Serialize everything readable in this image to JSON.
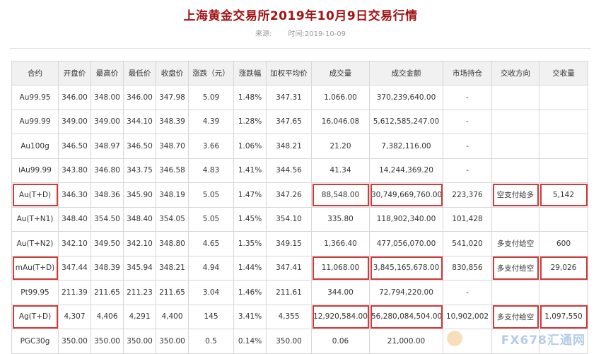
{
  "header": {
    "title": "上海黄金交易所2019年10月9日交易行情",
    "source_label": "来源:",
    "time_label": "时间:2019-10-09"
  },
  "table": {
    "columns": [
      "合约",
      "开盘价",
      "最高价",
      "最低价",
      "收盘价",
      "涨跌（元）",
      "涨跌幅",
      "加权平均价",
      "成交量",
      "成交金额",
      "市场持仓",
      "交收方向",
      "交收量"
    ],
    "rows": [
      [
        "Au99.95",
        "346.00",
        "348.00",
        "346.00",
        "347.98",
        "5.09",
        "1.48%",
        "347.31",
        "1,066.00",
        "370,239,640.00",
        "-",
        "",
        ""
      ],
      [
        "Au99.99",
        "349.00",
        "349.00",
        "344.10",
        "348.39",
        "4.39",
        "1.28%",
        "347.65",
        "16,046.08",
        "5,612,585,247.00",
        "-",
        "",
        ""
      ],
      [
        "Au100g",
        "346.50",
        "348.97",
        "346.50",
        "348.70",
        "3.66",
        "1.06%",
        "348.21",
        "21.20",
        "7,382,116.00",
        "-",
        "",
        ""
      ],
      [
        "iAu99.99",
        "343.80",
        "346.80",
        "343.75",
        "346.58",
        "4.83",
        "1.41%",
        "344.56",
        "41.34",
        "14,244,369.20",
        "-",
        "",
        ""
      ],
      [
        "Au(T+D)",
        "346.30",
        "348.36",
        "345.90",
        "348.19",
        "5.05",
        "1.47%",
        "347.26",
        "88,548.00",
        "30,749,669,760.00",
        "223,376",
        "空支付给多",
        "5,142"
      ],
      [
        "Au(T+N1)",
        "348.40",
        "354.50",
        "348.40",
        "354.05",
        "5.05",
        "1.45%",
        "354.10",
        "335.80",
        "118,902,340.00",
        "101,428",
        "",
        ""
      ],
      [
        "Au(T+N2)",
        "342.10",
        "349.50",
        "342.10",
        "348.80",
        "4.65",
        "1.35%",
        "349.15",
        "1,366.40",
        "477,056,070.00",
        "541,020",
        "多支付给空",
        "600"
      ],
      [
        "mAu(T+D)",
        "347.44",
        "348.39",
        "345.94",
        "348.21",
        "4.94",
        "1.44%",
        "347.41",
        "11,068.00",
        "3,845,165,678.00",
        "830,856",
        "多支付给空",
        "29,026"
      ],
      [
        "Pt99.95",
        "211.39",
        "211.65",
        "211.23",
        "211.65",
        "3.04",
        "1.46%",
        "211.61",
        "344.00",
        "72,794,220.00",
        "-",
        "",
        ""
      ],
      [
        "Ag(T+D)",
        "4,307",
        "4,406",
        "4,291",
        "4,400",
        "145",
        "3.41%",
        "4,355",
        "12,920,584.00",
        "56,280,084,504.00",
        "10,902,002",
        "多支付给空",
        "1,097,550"
      ],
      [
        "PGC30g",
        "350.00",
        "350.00",
        "350.00",
        "350.00",
        "0.5",
        "0.14%",
        "350.00",
        "0.06",
        "21,000.00",
        "",
        "",
        ""
      ]
    ],
    "highlighted_rows": [
      4,
      7,
      9
    ],
    "highlighted_columns": [
      0,
      8,
      9,
      11,
      12
    ],
    "highlight_color": "#d23a3a"
  },
  "watermark": {
    "text": "FX678汇通网"
  }
}
